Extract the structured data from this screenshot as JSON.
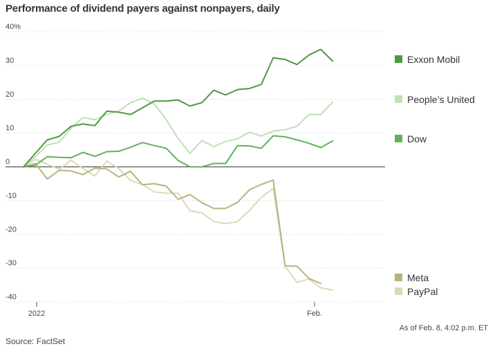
{
  "chart_data": {
    "type": "line",
    "title": "Performance of dividend payers against nonpayers, daily",
    "x_tick_labels": [
      "2022",
      "Feb."
    ],
    "y_ticks": [
      40,
      30,
      20,
      10,
      0,
      -10,
      -20,
      -30,
      -40
    ],
    "y_tick_labels": [
      "40%",
      "30",
      "20",
      "10",
      "0",
      "-10",
      "-20",
      "-30",
      "-40"
    ],
    "ylim": [
      -40,
      40
    ],
    "grid": true,
    "legend_placement": "right",
    "series": [
      {
        "name": "Exxon Mobil",
        "color": "#4d9a40",
        "values": [
          0,
          4,
          8,
          9,
          12,
          12.7,
          12.2,
          16.5,
          16.2,
          15.5,
          17.5,
          19.5,
          19.5,
          19.8,
          18,
          19,
          22.7,
          21.3,
          22.9,
          23.2,
          24.4,
          32.3,
          31.8,
          30.3,
          33.1,
          34.8,
          31.3
        ]
      },
      {
        "name": "People’s United",
        "color": "#bfe0b5",
        "values": [
          0,
          3,
          6.5,
          7.3,
          11.5,
          14.6,
          14,
          15.5,
          16.5,
          19,
          20.3,
          18.7,
          14,
          8.4,
          4,
          7.8,
          6,
          7.5,
          8.3,
          10.3,
          9.1,
          10.6,
          11,
          12,
          15.5,
          15.5,
          19.2
        ]
      },
      {
        "name": "Dow",
        "color": "#5db356",
        "values": [
          0,
          0.5,
          3,
          2.8,
          2.7,
          4.3,
          3.1,
          4.5,
          4.6,
          5.8,
          7.2,
          6.3,
          5.5,
          1.9,
          0,
          0,
          1,
          1,
          6.3,
          6.2,
          5.5,
          9.2,
          8.9,
          8,
          7,
          5.7,
          7.7
        ]
      },
      {
        "name": "Meta",
        "color": "#b8b37c",
        "values": [
          0,
          1,
          -3.6,
          -1,
          -1.2,
          -2.3,
          -0.4,
          -0.6,
          -3,
          -1.3,
          -5.3,
          -5,
          -5.7,
          -9.6,
          -8.2,
          -10.6,
          -12.3,
          -12.3,
          -10.5,
          -6.8,
          -5.2,
          -3.9,
          -29.3,
          -29.4,
          -33,
          -34.6
        ]
      },
      {
        "name": "PayPal",
        "color": "#ddd8b9",
        "values": [
          0,
          2.2,
          0.8,
          -0.7,
          2,
          -0.5,
          -2.7,
          1.7,
          -0.5,
          -4,
          -5.2,
          -7.4,
          -7.8,
          -7.8,
          -13,
          -13.6,
          -16.2,
          -16.8,
          -16.2,
          -12.9,
          -9,
          -6.4,
          -29.5,
          -34.2,
          -33.2,
          -35.8,
          -36.5
        ]
      }
    ],
    "legend_order": [
      "Exxon Mobil",
      "People’s United",
      "Dow",
      "Meta",
      "PayPal"
    ]
  },
  "footnote": "As of Feb. 8, 4:02 p.m. ET",
  "source": "Source: FactSet"
}
